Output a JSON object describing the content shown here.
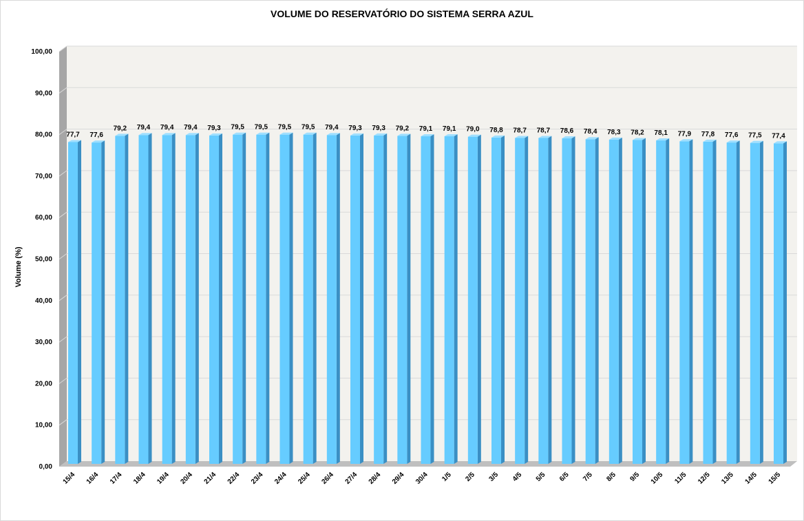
{
  "chart_data": {
    "type": "bar",
    "title": "VOLUME DO RESERVATÓRIO DO SISTEMA SERRA AZUL",
    "xlabel": "",
    "ylabel": "Volume (%)",
    "ylim": [
      0,
      100
    ],
    "yticks": [
      "0,00",
      "10,00",
      "20,00",
      "30,00",
      "40,00",
      "50,00",
      "60,00",
      "70,00",
      "80,00",
      "90,00",
      "100,00"
    ],
    "categories": [
      "15/4",
      "16/4",
      "17/4",
      "18/4",
      "19/4",
      "20/4",
      "21/4",
      "22/4",
      "23/4",
      "24/4",
      "25/4",
      "26/4",
      "27/4",
      "28/4",
      "29/4",
      "30/4",
      "1/5",
      "2/5",
      "3/5",
      "4/5",
      "5/5",
      "6/5",
      "7/5",
      "8/5",
      "9/5",
      "10/5",
      "11/5",
      "12/5",
      "13/5",
      "14/5",
      "15/5"
    ],
    "values": [
      77.7,
      77.6,
      79.2,
      79.4,
      79.4,
      79.4,
      79.3,
      79.5,
      79.5,
      79.5,
      79.5,
      79.4,
      79.3,
      79.3,
      79.2,
      79.1,
      79.1,
      79.0,
      78.8,
      78.7,
      78.7,
      78.6,
      78.4,
      78.3,
      78.2,
      78.1,
      77.9,
      77.8,
      77.6,
      77.5,
      77.4
    ],
    "value_labels": [
      "77,7",
      "77,6",
      "79,2",
      "79,4",
      "79,4",
      "79,4",
      "79,3",
      "79,5",
      "79,5",
      "79,5",
      "79,5",
      "79,4",
      "79,3",
      "79,3",
      "79,2",
      "79,1",
      "79,1",
      "79,0",
      "78,8",
      "78,7",
      "78,7",
      "78,6",
      "78,4",
      "78,3",
      "78,2",
      "78,1",
      "77,9",
      "77,8",
      "77,6",
      "77,5",
      "77,4"
    ],
    "grid": true,
    "legend": "none",
    "colors": {
      "bar_front": "#66ccff",
      "bar_side": "#3a8fc4",
      "bar_top": "#9fdfff",
      "plot_bg": "#f3f2ee",
      "side_wall": "#a6a6a6",
      "floor": "#bfbfbf",
      "grid": "#d9d9d9"
    }
  }
}
